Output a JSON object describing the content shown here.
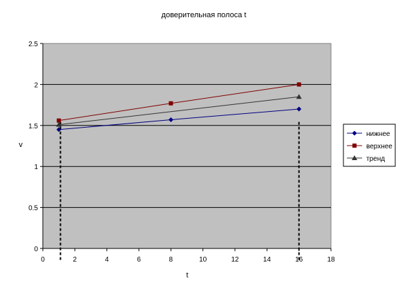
{
  "chart_data": {
    "type": "line",
    "title": "доверительная полоса t",
    "xlabel": "t",
    "ylabel": "v",
    "xlim": [
      0,
      18
    ],
    "ylim": [
      0,
      2.5
    ],
    "x_ticks": [
      0,
      2,
      4,
      6,
      8,
      10,
      12,
      14,
      16,
      18
    ],
    "y_ticks": [
      0,
      0.5,
      1,
      1.5,
      2,
      2.5
    ],
    "x_tick_labels": [
      "0",
      "2",
      "4",
      "6",
      "8",
      "10",
      "12",
      "14",
      "16",
      "18"
    ],
    "y_tick_labels": [
      "0",
      "0.5",
      "1",
      "1.5",
      "2",
      "2.5"
    ],
    "plot_background": "#C0C0C0",
    "grid": "horizontal",
    "legend_position": "right",
    "series": [
      {
        "name": "нижнее",
        "color": "#000080",
        "marker": "diamond",
        "points": [
          [
            1,
            1.45
          ],
          [
            8,
            1.57
          ],
          [
            16,
            1.7
          ]
        ]
      },
      {
        "name": "верхнее",
        "color": "#800000",
        "marker": "square",
        "points": [
          [
            1,
            1.56
          ],
          [
            8,
            1.77
          ],
          [
            16,
            2.0
          ]
        ]
      },
      {
        "name": "тренд",
        "color": "#333333",
        "marker": "triangle",
        "points": [
          [
            1,
            1.51
          ],
          [
            16,
            1.85
          ]
        ]
      }
    ],
    "vertical_dashed_lines_x": [
      1.1,
      16
    ]
  }
}
